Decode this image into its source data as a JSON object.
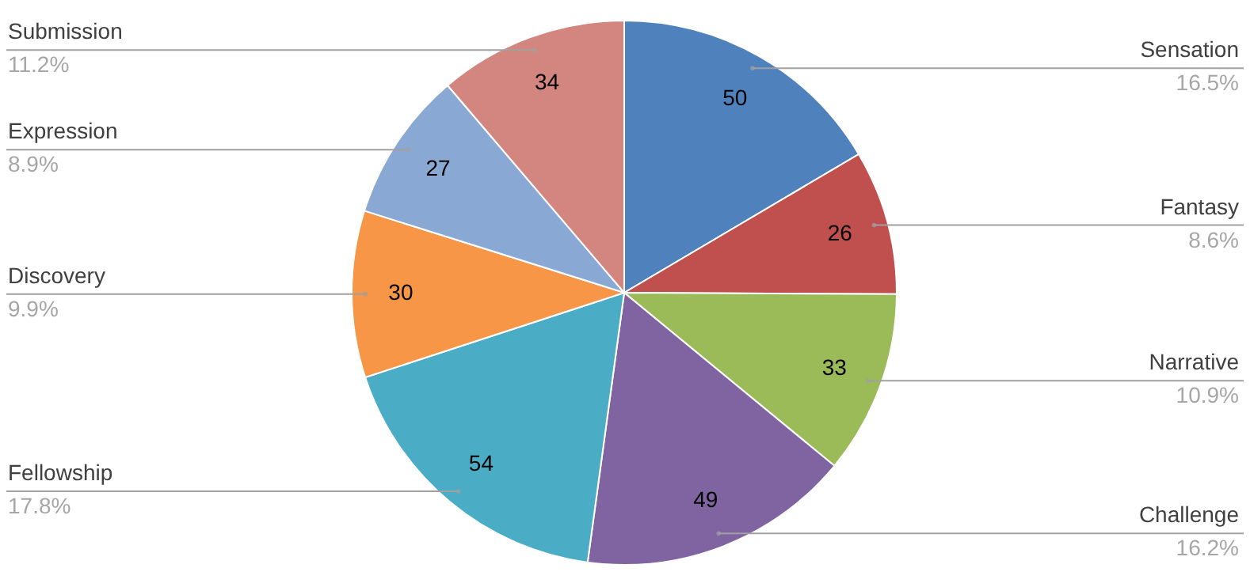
{
  "chart_data": {
    "type": "pie",
    "categories": [
      "Sensation",
      "Fantasy",
      "Narrative",
      "Challenge",
      "Fellowship",
      "Discovery",
      "Expression",
      "Submission"
    ],
    "values": [
      50,
      26,
      33,
      49,
      54,
      30,
      27,
      34
    ],
    "colors": [
      "#4f81bd",
      "#c0504d",
      "#9bbb59",
      "#8064a2",
      "#4bacc6",
      "#f79646",
      "#8aa8d4",
      "#d3857f"
    ],
    "data_labels": true,
    "annotations": [
      "16.5%",
      "8.6%",
      "10.9%",
      "16.2%",
      "17.8%",
      "9.9%",
      "8.9%",
      "11.2%"
    ]
  }
}
